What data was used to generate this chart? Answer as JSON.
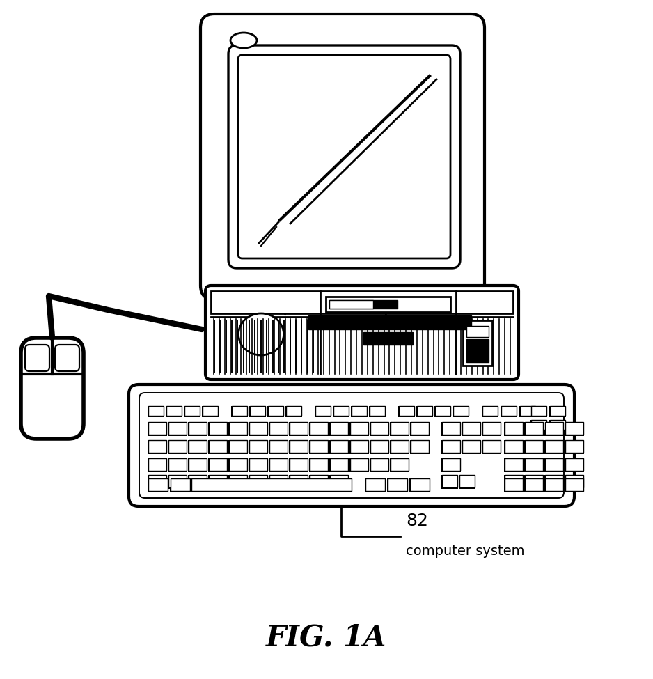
{
  "title": "FIG. 1A",
  "label_number": "82",
  "label_text": "computer system",
  "bg_color": "#ffffff",
  "line_color": "#000000",
  "line_width": 2.0,
  "figsize": [
    9.38,
    9.75
  ],
  "dpi": 100
}
